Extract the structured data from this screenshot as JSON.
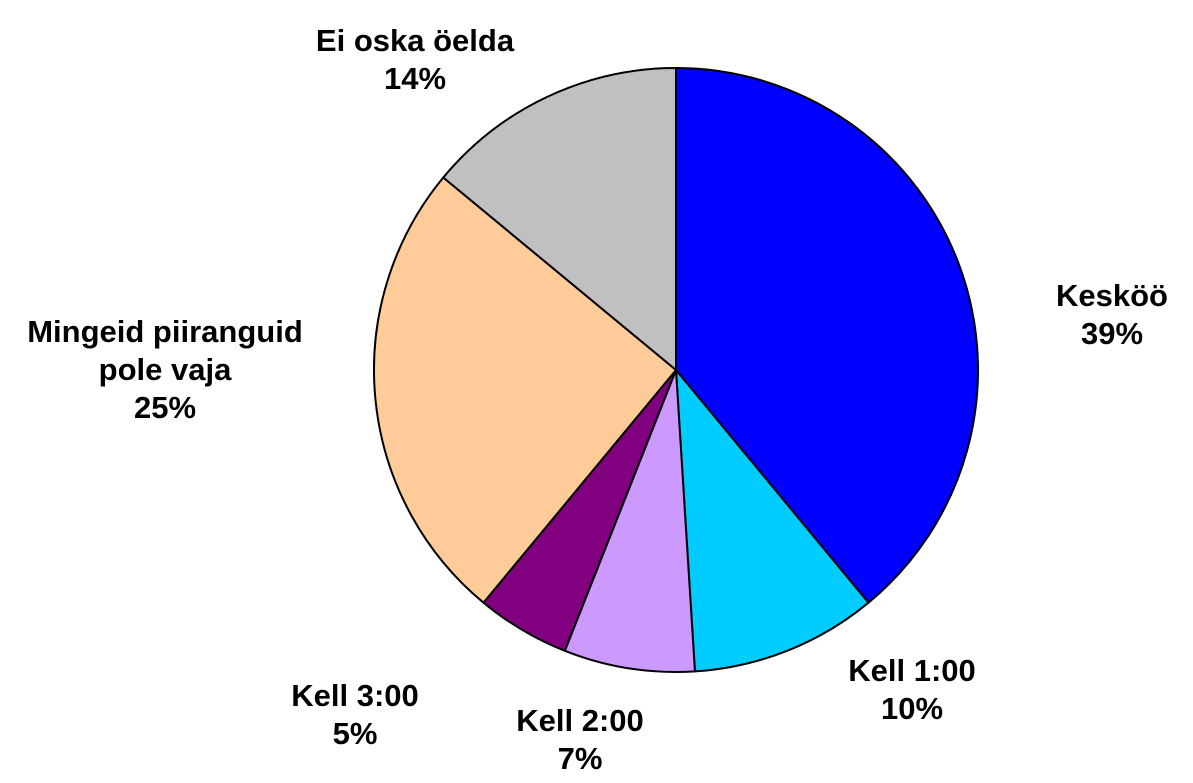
{
  "chart_data": {
    "type": "pie",
    "categories": [
      "Kesköö",
      "Kell 1:00",
      "Kell 2:00",
      "Kell 3:00",
      "Mingeid piiranguid pole vaja",
      "Ei oska öelda"
    ],
    "values": [
      39,
      10,
      7,
      5,
      25,
      14
    ],
    "value_labels": [
      "39%",
      "10%",
      "7%",
      "5%",
      "25%",
      "14%"
    ],
    "colors": [
      "#0000ff",
      "#00ccff",
      "#cc99ff",
      "#800080",
      "#ffcc99",
      "#c0c0c0"
    ]
  }
}
